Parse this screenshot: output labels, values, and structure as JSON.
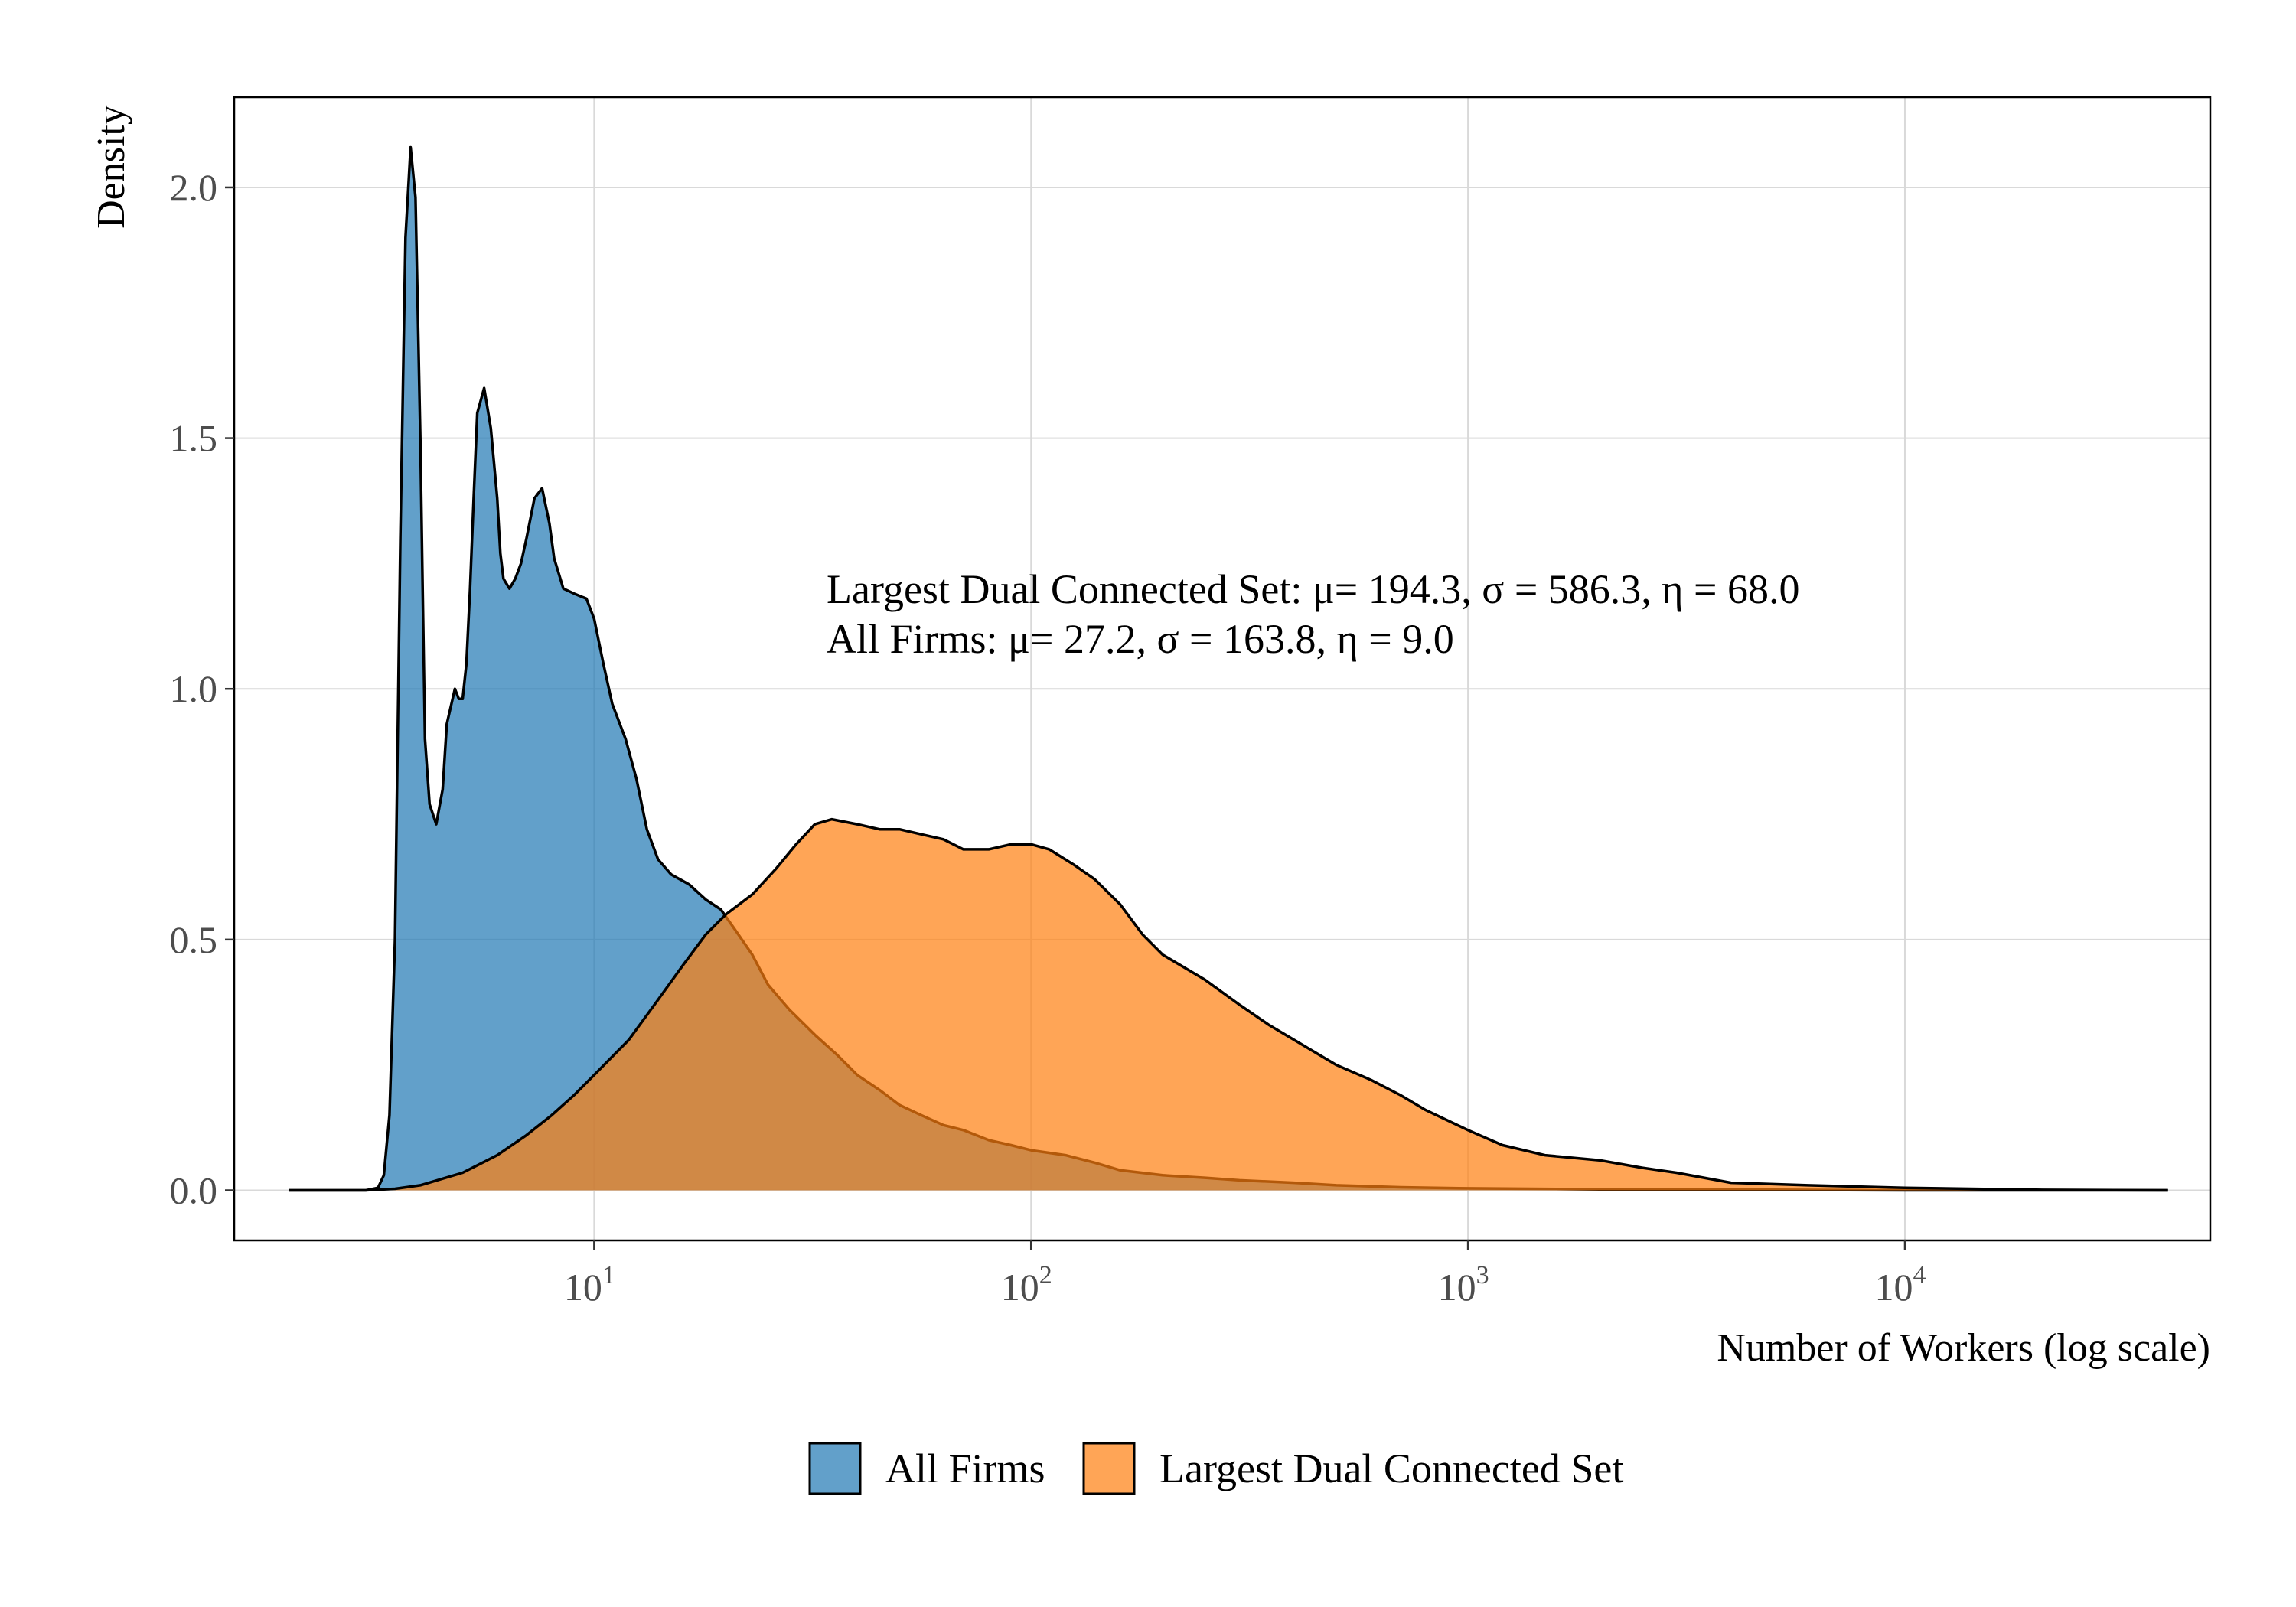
{
  "chart_data": {
    "type": "area",
    "title": "",
    "xlabel": "Number of Workers (log scale)",
    "ylabel": "Density",
    "x_scale": "log10",
    "xlim": [
      1.5,
      50000
    ],
    "ylim": [
      -0.1,
      2.18
    ],
    "x_ticks": [
      {
        "value": 10,
        "base": "10",
        "exp": "1"
      },
      {
        "value": 100,
        "base": "10",
        "exp": "2"
      },
      {
        "value": 1000,
        "base": "10",
        "exp": "3"
      },
      {
        "value": 10000,
        "base": "10",
        "exp": "4"
      }
    ],
    "y_ticks": [
      {
        "value": 0.0,
        "label": "0.0"
      },
      {
        "value": 0.5,
        "label": "0.5"
      },
      {
        "value": 1.0,
        "label": "1.0"
      },
      {
        "value": 1.5,
        "label": "1.5"
      },
      {
        "value": 2.0,
        "label": "2.0"
      }
    ],
    "grid": true,
    "legend_position": "bottom",
    "annotations": [
      "Largest Dual Connected Set: μ= 194.3, σ = 586.3, η = 68.0",
      "All Firms: μ= 27.2, σ = 163.8, η = 9.0"
    ],
    "series": [
      {
        "name": "All Firms",
        "color": "#1f77b4",
        "opacity": 0.7,
        "x": [
          2,
          3,
          3.2,
          3.3,
          3.4,
          3.5,
          3.6,
          3.7,
          3.8,
          3.9,
          4.0,
          4.1,
          4.2,
          4.35,
          4.5,
          4.6,
          4.8,
          4.9,
          5.0,
          5.1,
          5.2,
          5.3,
          5.4,
          5.6,
          5.8,
          6.0,
          6.1,
          6.2,
          6.4,
          6.6,
          6.8,
          7.0,
          7.3,
          7.6,
          7.9,
          8.1,
          8.5,
          9.0,
          9.6,
          10,
          10.5,
          11,
          11.8,
          12.5,
          13.2,
          14,
          15,
          16.5,
          18,
          19.5,
          21,
          23,
          25,
          28,
          32,
          36,
          40,
          45,
          50,
          56,
          63,
          70,
          80,
          90,
          100,
          120,
          140,
          160,
          200,
          250,
          300,
          400,
          500,
          700,
          1000,
          2000,
          5000,
          10000,
          40000
        ],
        "y": [
          0.0,
          0.0,
          0.005,
          0.03,
          0.15,
          0.5,
          1.3,
          1.9,
          2.08,
          1.98,
          1.5,
          0.9,
          0.77,
          0.73,
          0.8,
          0.93,
          1.0,
          0.98,
          0.98,
          1.05,
          1.2,
          1.38,
          1.55,
          1.6,
          1.52,
          1.38,
          1.27,
          1.22,
          1.2,
          1.22,
          1.25,
          1.3,
          1.38,
          1.4,
          1.33,
          1.26,
          1.2,
          1.19,
          1.18,
          1.14,
          1.05,
          0.97,
          0.9,
          0.82,
          0.72,
          0.66,
          0.63,
          0.61,
          0.58,
          0.56,
          0.52,
          0.47,
          0.41,
          0.36,
          0.31,
          0.27,
          0.23,
          0.2,
          0.17,
          0.15,
          0.13,
          0.12,
          0.1,
          0.09,
          0.08,
          0.07,
          0.055,
          0.04,
          0.03,
          0.025,
          0.02,
          0.015,
          0.01,
          0.006,
          0.004,
          0.002,
          0.001,
          0.0,
          0.0
        ]
      },
      {
        "name": "Largest Dual Connected Set",
        "color": "#ff7f0e",
        "opacity": 0.7,
        "x": [
          2,
          3,
          3.5,
          4,
          5,
          6,
          7,
          8,
          9,
          10,
          12,
          14,
          16,
          18,
          20,
          23,
          26,
          29,
          32,
          35,
          40,
          45,
          50,
          56,
          63,
          70,
          80,
          90,
          100,
          110,
          125,
          140,
          160,
          180,
          200,
          250,
          300,
          350,
          400,
          500,
          600,
          700,
          800,
          1000,
          1200,
          1500,
          2000,
          2500,
          3000,
          4000,
          6000,
          10000,
          20000,
          40000
        ],
        "y": [
          0.0,
          0.0,
          0.003,
          0.01,
          0.035,
          0.07,
          0.11,
          0.15,
          0.19,
          0.23,
          0.3,
          0.38,
          0.45,
          0.51,
          0.55,
          0.59,
          0.64,
          0.69,
          0.73,
          0.74,
          0.73,
          0.72,
          0.72,
          0.71,
          0.7,
          0.68,
          0.68,
          0.69,
          0.69,
          0.68,
          0.65,
          0.62,
          0.57,
          0.51,
          0.47,
          0.42,
          0.37,
          0.33,
          0.3,
          0.25,
          0.22,
          0.19,
          0.16,
          0.12,
          0.09,
          0.07,
          0.06,
          0.045,
          0.035,
          0.015,
          0.01,
          0.005,
          0.001,
          0.0
        ]
      }
    ]
  }
}
